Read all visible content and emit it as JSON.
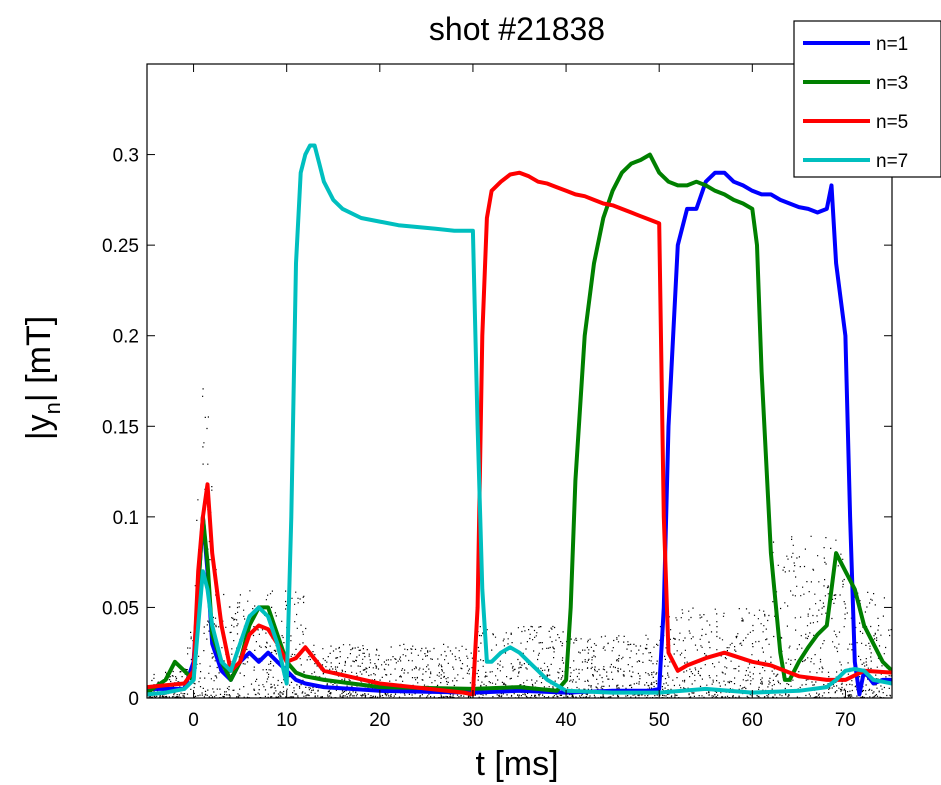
{
  "chart_data": {
    "type": "line",
    "title": "shot #21838",
    "xlabel": "t [ms]",
    "ylabel_main": "|y",
    "ylabel_sub": "n",
    "ylabel_tail": "| [mT]",
    "xlim": [
      -5,
      75
    ],
    "ylim": [
      0,
      0.35
    ],
    "xticks": [
      0,
      10,
      20,
      30,
      40,
      50,
      60,
      70
    ],
    "yticks": [
      0,
      0.05,
      0.1,
      0.15,
      0.2,
      0.25,
      0.3
    ],
    "ytick_labels": [
      "0",
      "0.05",
      "0.1",
      "0.15",
      "0.2",
      "0.25",
      "0.3"
    ],
    "grid": false,
    "legend_position": "top-right",
    "series": [
      {
        "name": "n=1",
        "color": "#0000ff",
        "x": [
          -5,
          -3,
          -1,
          0,
          0.5,
          1,
          1.5,
          2,
          3,
          4,
          5,
          6,
          7,
          8,
          9,
          10,
          11,
          12,
          14,
          20,
          30,
          35,
          40,
          45,
          49,
          50,
          50.5,
          51,
          52,
          53,
          54,
          55,
          56,
          57,
          58,
          59,
          60,
          61,
          62,
          63,
          64,
          65,
          66,
          67,
          68,
          68.5,
          69,
          70,
          70.5,
          71,
          71.5,
          72,
          73,
          74,
          75
        ],
        "y": [
          0.005,
          0.005,
          0.005,
          0.02,
          0.06,
          0.1,
          0.07,
          0.03,
          0.015,
          0.01,
          0.02,
          0.025,
          0.02,
          0.025,
          0.02,
          0.015,
          0.01,
          0.008,
          0.006,
          0.004,
          0.003,
          0.004,
          0.003,
          0.004,
          0.004,
          0.005,
          0.05,
          0.15,
          0.25,
          0.27,
          0.27,
          0.285,
          0.29,
          0.29,
          0.285,
          0.283,
          0.28,
          0.278,
          0.278,
          0.275,
          0.273,
          0.271,
          0.27,
          0.268,
          0.27,
          0.283,
          0.24,
          0.2,
          0.1,
          0.02,
          0.002,
          0.015,
          0.008,
          0.01,
          0.01
        ]
      },
      {
        "name": "n=3",
        "color": "#008000",
        "x": [
          -5,
          -3,
          -2,
          -1,
          0,
          0.5,
          1,
          1.5,
          2,
          3,
          4,
          5,
          6,
          7,
          8,
          9,
          10,
          11,
          12,
          14,
          20,
          30,
          35,
          39,
          40,
          40.5,
          41,
          42,
          43,
          44,
          45,
          46,
          47,
          48,
          49,
          50,
          51,
          52,
          53,
          54,
          55,
          56,
          57,
          58,
          59,
          60,
          60.5,
          61,
          62,
          63,
          63.5,
          64,
          65,
          66,
          67,
          68,
          68.5,
          69,
          70,
          71,
          72,
          73,
          74,
          75
        ],
        "y": [
          0.003,
          0.01,
          0.02,
          0.015,
          0.01,
          0.06,
          0.1,
          0.075,
          0.035,
          0.02,
          0.01,
          0.02,
          0.04,
          0.05,
          0.05,
          0.035,
          0.02,
          0.014,
          0.012,
          0.01,
          0.006,
          0.005,
          0.006,
          0.004,
          0.01,
          0.05,
          0.12,
          0.2,
          0.24,
          0.265,
          0.28,
          0.29,
          0.295,
          0.297,
          0.3,
          0.29,
          0.285,
          0.283,
          0.283,
          0.285,
          0.283,
          0.28,
          0.278,
          0.275,
          0.273,
          0.27,
          0.25,
          0.18,
          0.08,
          0.025,
          0.01,
          0.01,
          0.02,
          0.028,
          0.035,
          0.04,
          0.06,
          0.08,
          0.07,
          0.06,
          0.04,
          0.03,
          0.02,
          0.015
        ]
      },
      {
        "name": "n=5",
        "color": "#ff0000",
        "x": [
          -5,
          -3,
          -1,
          0,
          0.5,
          1,
          1.5,
          2,
          3,
          4,
          5,
          6,
          7,
          8,
          9,
          10,
          11,
          12,
          14,
          20,
          29,
          30,
          30.5,
          31,
          31.5,
          32,
          33,
          34,
          35,
          36,
          37,
          38,
          39,
          40,
          41,
          42,
          43,
          44,
          45,
          46,
          47,
          48,
          49,
          50,
          50.5,
          51,
          52,
          53,
          55,
          57,
          60,
          62,
          65,
          68,
          70,
          72,
          75
        ],
        "y": [
          0.006,
          0.007,
          0.008,
          0.015,
          0.07,
          0.1,
          0.118,
          0.08,
          0.04,
          0.015,
          0.02,
          0.035,
          0.04,
          0.038,
          0.03,
          0.02,
          0.022,
          0.028,
          0.015,
          0.008,
          0.003,
          0.002,
          0.05,
          0.2,
          0.265,
          0.28,
          0.285,
          0.289,
          0.29,
          0.288,
          0.285,
          0.284,
          0.282,
          0.28,
          0.278,
          0.277,
          0.275,
          0.273,
          0.272,
          0.27,
          0.268,
          0.266,
          0.264,
          0.262,
          0.1,
          0.025,
          0.015,
          0.018,
          0.022,
          0.025,
          0.02,
          0.018,
          0.012,
          0.01,
          0.01,
          0.015,
          0.014
        ]
      },
      {
        "name": "n=7",
        "color": "#00bfbf",
        "x": [
          -5,
          -3,
          -1,
          0,
          0.5,
          1,
          1.5,
          2,
          3,
          4,
          5,
          6,
          7,
          8,
          9,
          10,
          10.5,
          11,
          11.5,
          12,
          12.5,
          13,
          13.5,
          14,
          15,
          16,
          18,
          20,
          22,
          24,
          26,
          28,
          30,
          30.5,
          31,
          31.5,
          32,
          33,
          34,
          35,
          36,
          37,
          38,
          40,
          45,
          50,
          55,
          60,
          65,
          68,
          69,
          70,
          71,
          72,
          73,
          75
        ],
        "y": [
          0.002,
          0.003,
          0.005,
          0.01,
          0.04,
          0.07,
          0.06,
          0.04,
          0.02,
          0.015,
          0.03,
          0.045,
          0.05,
          0.045,
          0.03,
          0.008,
          0.1,
          0.24,
          0.29,
          0.3,
          0.305,
          0.305,
          0.295,
          0.285,
          0.275,
          0.27,
          0.265,
          0.263,
          0.261,
          0.26,
          0.259,
          0.258,
          0.258,
          0.15,
          0.06,
          0.02,
          0.02,
          0.025,
          0.028,
          0.025,
          0.02,
          0.015,
          0.01,
          0.004,
          0.003,
          0.003,
          0.005,
          0.003,
          0.004,
          0.006,
          0.01,
          0.015,
          0.016,
          0.015,
          0.01,
          0.008
        ]
      }
    ]
  }
}
